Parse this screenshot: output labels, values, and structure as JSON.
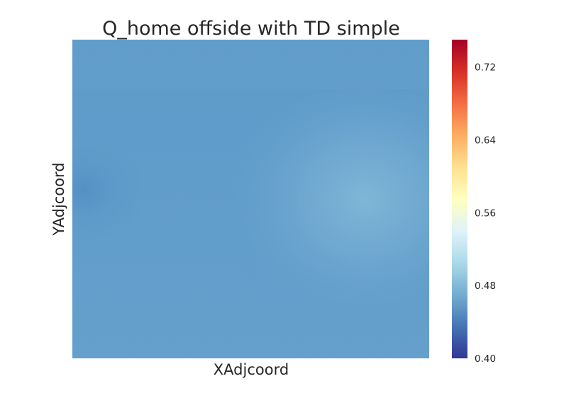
{
  "chart_data": {
    "type": "heatmap",
    "title": "Q_home offside with TD simple",
    "xlabel": "XAdjcoord",
    "ylabel": "YAdjcoord",
    "colorbar": {
      "colormap": "RdYlBu_r",
      "range": [
        0.4,
        0.75
      ],
      "ticks": [
        "0.40",
        "0.48",
        "0.56",
        "0.64",
        "0.72"
      ]
    },
    "grid": false,
    "field": {
      "base_value": 0.455,
      "peak": {
        "value": 0.49,
        "x_frac": 0.82,
        "y_frac": 0.5
      },
      "low_spot": {
        "value": 0.445,
        "x_frac": 0.03,
        "y_frac": 0.47
      }
    }
  }
}
